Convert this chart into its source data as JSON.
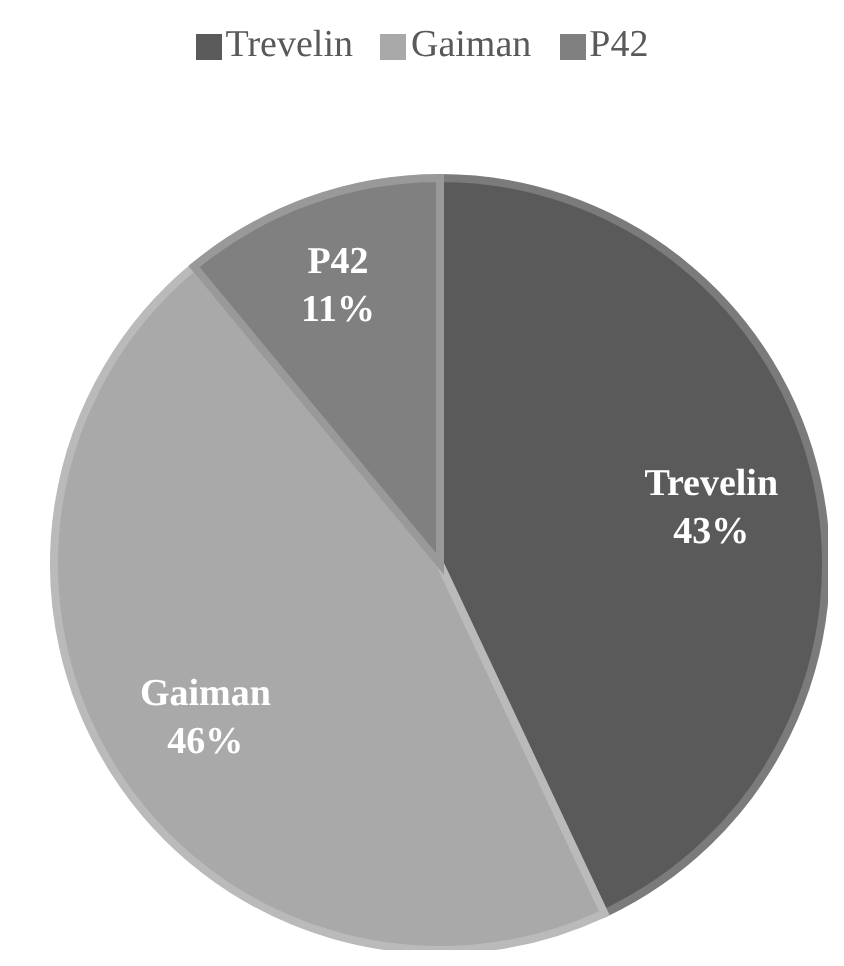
{
  "chart_data": {
    "type": "pie",
    "categories": [
      "Trevelin",
      "Gaiman",
      "P42"
    ],
    "values": [
      43,
      46,
      11
    ],
    "colors": [
      "#5a5a5a",
      "#a9a9a9",
      "#808080"
    ],
    "value_labels": [
      "43%",
      "46%",
      "11%"
    ],
    "legend": "top"
  }
}
